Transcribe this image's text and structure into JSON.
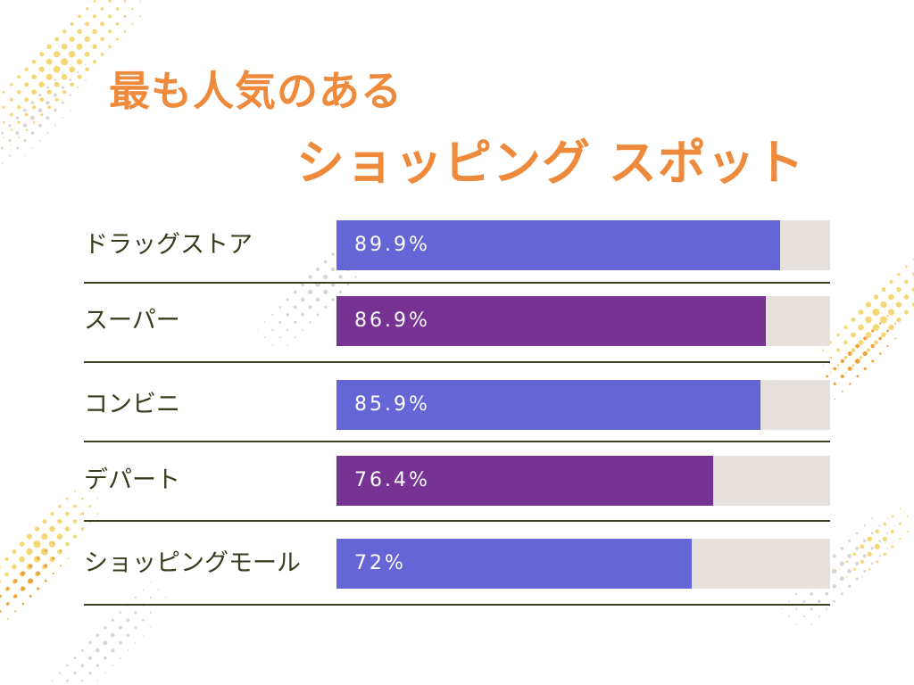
{
  "title": {
    "line1": "最も人気のある",
    "line2": "ショッピング スポット"
  },
  "colors": {
    "title": "#EE8A3C",
    "label": "#3A3A1E",
    "track": "#E6E1DC",
    "divider": "#3F4020",
    "bar_blue": "#6466D6",
    "bar_purple": "#773394",
    "dots_yellow": "#F4D776",
    "dots_orange": "#F2A23A",
    "dots_gray": "#D9D6D0"
  },
  "chart_data": {
    "type": "bar",
    "orientation": "horizontal",
    "xlim": [
      0,
      100
    ],
    "unit": "%",
    "categories": [
      "ドラッグストア",
      "スーパー",
      "コンビニ",
      "デパート",
      "ショッピングモール"
    ],
    "values": [
      89.9,
      86.9,
      85.9,
      76.4,
      72
    ],
    "value_labels": [
      "89.9%",
      "86.9%",
      "85.9%",
      "76.4%",
      "72%"
    ],
    "bar_colors": [
      "#6466D6",
      "#773394",
      "#6466D6",
      "#773394",
      "#6466D6"
    ],
    "grid": false,
    "legend": "none"
  }
}
